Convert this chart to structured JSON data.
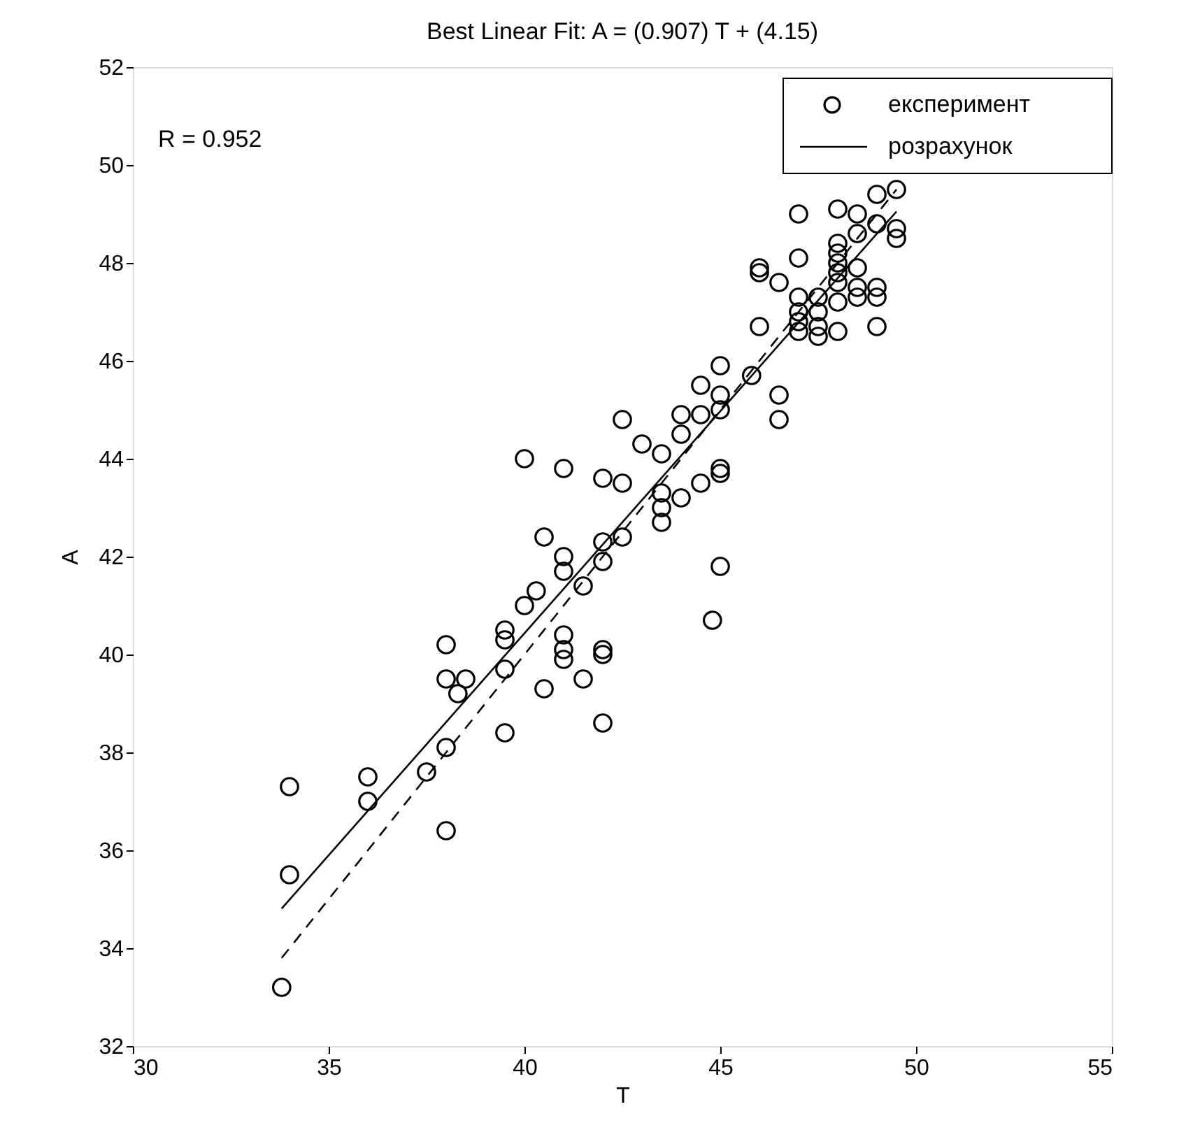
{
  "chart_data": {
    "type": "scatter",
    "title": "Best Linear Fit:  A = (0.907) T + (4.15)",
    "xlabel": "T",
    "ylabel": "A",
    "xlim": [
      30,
      55
    ],
    "xticks": [
      30,
      35,
      40,
      45,
      50,
      55
    ],
    "ylim": [
      32,
      52
    ],
    "yticks": [
      32,
      34,
      36,
      38,
      40,
      42,
      44,
      46,
      48,
      50,
      52
    ],
    "grid": false,
    "legend": "top right",
    "annotations": [
      "R = 0.952"
    ],
    "series": [
      {
        "name": "експеримент",
        "color": "#000000",
        "marker": "circle",
        "x": [
          33.8,
          34,
          34,
          36,
          36,
          37.5,
          38,
          38,
          38,
          38,
          38.3,
          38.5,
          39.5,
          39.5,
          39.5,
          39.5,
          40,
          40,
          40.3,
          40.5,
          40.5,
          41,
          41,
          41,
          41,
          41,
          41,
          41.5,
          41.5,
          42,
          42,
          42,
          42,
          42,
          42,
          42.5,
          42.5,
          42.5,
          43,
          43.5,
          43.5,
          43.5,
          43.5,
          44,
          44,
          44,
          44.5,
          44.5,
          44.5,
          44.8,
          45,
          45,
          45,
          45,
          45,
          45,
          45.8,
          46,
          46,
          46,
          46.5,
          46.5,
          46.5,
          47,
          47,
          47,
          47,
          47,
          47,
          47.5,
          47.5,
          47.5,
          47.5,
          48,
          48,
          48,
          48,
          48,
          48,
          48,
          48,
          48.5,
          48.5,
          48.5,
          48.5,
          48.5,
          49,
          49,
          49,
          49,
          49,
          49.5,
          49.5,
          49.5
        ],
        "values": [
          33.2,
          35.5,
          37.3,
          37.0,
          37.5,
          37.6,
          38.1,
          36.4,
          39.5,
          40.2,
          39.2,
          39.5,
          38.4,
          39.7,
          40.3,
          40.5,
          41.0,
          44.0,
          41.3,
          42.4,
          39.3,
          41.7,
          42.0,
          40.4,
          40.1,
          39.9,
          43.8,
          41.4,
          39.5,
          40.1,
          40.0,
          38.6,
          41.9,
          42.3,
          43.6,
          43.5,
          42.4,
          44.8,
          44.3,
          44.1,
          43.3,
          43.0,
          42.7,
          44.5,
          44.9,
          43.2,
          45.5,
          44.9,
          43.5,
          40.7,
          45.9,
          45.3,
          45.0,
          43.8,
          43.7,
          41.8,
          45.7,
          47.9,
          47.8,
          46.7,
          45.3,
          44.8,
          47.6,
          49.0,
          48.1,
          47.3,
          47.0,
          46.8,
          46.6,
          47.3,
          47.0,
          46.7,
          46.5,
          49.1,
          48.4,
          48.2,
          48.0,
          47.8,
          47.6,
          47.2,
          46.6,
          49.0,
          48.6,
          47.9,
          47.5,
          47.3,
          49.4,
          48.8,
          47.5,
          47.3,
          46.7,
          48.7,
          48.5,
          49.5
        ]
      },
      {
        "type": "line",
        "name": "розрахунок",
        "color": "#000000",
        "line_style": "solid",
        "x": [
          33.8,
          49.5
        ],
        "values": [
          34.81,
          49.05
        ]
      },
      {
        "type": "line",
        "color": "#000000",
        "line_style": "dashed",
        "x": [
          33.8,
          49.5
        ],
        "values": [
          33.8,
          49.5
        ]
      }
    ]
  }
}
